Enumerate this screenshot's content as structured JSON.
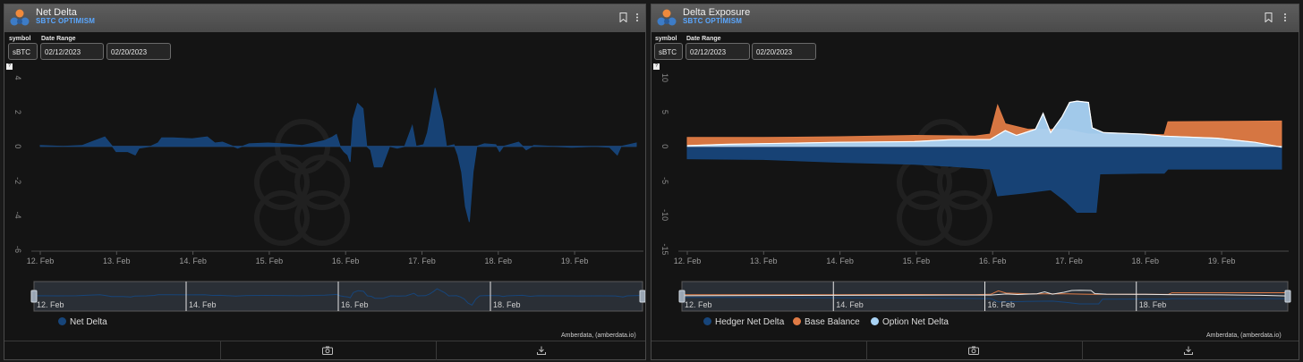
{
  "panels": [
    {
      "title": "Net Delta",
      "subtitle": "SBTC OPTIMISM",
      "symbol_label": "symbol",
      "symbol_value": "sBTC",
      "date_label": "Date Range",
      "date_from": "02/12/2023",
      "date_to": "02/20/2023",
      "help": "?",
      "credit": "Amberdata, (amberdata.io)",
      "legend": [
        {
          "label": "Net Delta",
          "color": "#17457a"
        }
      ]
    },
    {
      "title": "Delta Exposure",
      "subtitle": "SBTC OPTIMISM",
      "symbol_label": "symbol",
      "symbol_value": "sBTC",
      "date_label": "Date Range",
      "date_from": "02/12/2023",
      "date_to": "02/20/2023",
      "help": "?",
      "credit": "Amberdata, (amberdata.io)",
      "legend": [
        {
          "label": "Hedger Net Delta",
          "color": "#17457a"
        },
        {
          "label": "Base Balance",
          "color": "#e07b45"
        },
        {
          "label": "Option Net Delta",
          "color": "#a9d3f5"
        }
      ]
    }
  ],
  "icons": {
    "bookmark": "bookmark-icon",
    "more": "more-vertical-icon",
    "camera": "camera-icon",
    "download": "download-icon"
  },
  "chart_data": [
    {
      "type": "area",
      "title": "Net Delta",
      "x_ticks": [
        "12. Feb",
        "13. Feb",
        "14. Feb",
        "15. Feb",
        "16. Feb",
        "17. Feb",
        "18. Feb",
        "19. Feb"
      ],
      "navigator_labels": [
        "12. Feb",
        "14. Feb",
        "16. Feb",
        "18. Feb"
      ],
      "y_ticks": [
        "4",
        "2",
        "0",
        "-2",
        "-4",
        "-6"
      ],
      "ylim": [
        -6,
        4
      ],
      "xlim": [
        12.0,
        19.85
      ],
      "series": [
        {
          "name": "Net Delta",
          "color": "#17457a",
          "points": [
            [
              12.0,
              0.05
            ],
            [
              12.3,
              0.0
            ],
            [
              12.55,
              0.05
            ],
            [
              12.7,
              0.3
            ],
            [
              12.85,
              0.55
            ],
            [
              12.95,
              0.0
            ],
            [
              13.0,
              -0.3
            ],
            [
              13.15,
              -0.3
            ],
            [
              13.25,
              -0.5
            ],
            [
              13.3,
              -0.1
            ],
            [
              13.45,
              0.0
            ],
            [
              13.55,
              0.2
            ],
            [
              13.6,
              0.5
            ],
            [
              13.75,
              0.5
            ],
            [
              14.0,
              0.45
            ],
            [
              14.2,
              0.55
            ],
            [
              14.3,
              0.2
            ],
            [
              14.4,
              0.25
            ],
            [
              14.6,
              -0.1
            ],
            [
              14.75,
              0.15
            ],
            [
              15.0,
              0.2
            ],
            [
              15.2,
              0.15
            ],
            [
              15.45,
              0.05
            ],
            [
              15.6,
              0.2
            ],
            [
              15.75,
              0.35
            ],
            [
              15.85,
              0.55
            ],
            [
              15.9,
              0.7
            ],
            [
              15.95,
              0.0
            ],
            [
              16.0,
              -0.3
            ],
            [
              16.05,
              -0.5
            ],
            [
              16.08,
              -0.9
            ],
            [
              16.12,
              1.6
            ],
            [
              16.18,
              2.5
            ],
            [
              16.25,
              2.2
            ],
            [
              16.3,
              0.0
            ],
            [
              16.35,
              -0.2
            ],
            [
              16.4,
              -1.2
            ],
            [
              16.5,
              -1.2
            ],
            [
              16.6,
              0.0
            ],
            [
              16.7,
              -0.1
            ],
            [
              16.8,
              0.0
            ],
            [
              16.9,
              1.2
            ],
            [
              16.95,
              0.0
            ],
            [
              17.05,
              0.1
            ],
            [
              17.1,
              0.8
            ],
            [
              17.15,
              2.0
            ],
            [
              17.2,
              3.4
            ],
            [
              17.3,
              1.5
            ],
            [
              17.35,
              0.0
            ],
            [
              17.45,
              0.1
            ],
            [
              17.5,
              -0.5
            ],
            [
              17.55,
              -1.5
            ],
            [
              17.6,
              -3.5
            ],
            [
              17.65,
              -4.4
            ],
            [
              17.7,
              -1.5
            ],
            [
              17.75,
              0.0
            ],
            [
              17.85,
              0.15
            ],
            [
              18.0,
              0.1
            ],
            [
              18.05,
              -0.3
            ],
            [
              18.1,
              0.0
            ],
            [
              18.3,
              0.25
            ],
            [
              18.4,
              -0.2
            ],
            [
              18.5,
              0.05
            ],
            [
              18.75,
              0.0
            ],
            [
              19.0,
              -0.05
            ],
            [
              19.3,
              0.0
            ],
            [
              19.5,
              -0.05
            ],
            [
              19.6,
              -0.5
            ],
            [
              19.65,
              0.0
            ],
            [
              19.85,
              0.2
            ]
          ]
        }
      ]
    },
    {
      "type": "area",
      "title": "Delta Exposure",
      "x_ticks": [
        "12. Feb",
        "13. Feb",
        "14. Feb",
        "15. Feb",
        "16. Feb",
        "17. Feb",
        "18. Feb",
        "19. Feb"
      ],
      "navigator_labels": [
        "12. Feb",
        "14. Feb",
        "16. Feb",
        "18. Feb"
      ],
      "y_ticks": [
        "10",
        "5",
        "0",
        "-5",
        "-10",
        "-15"
      ],
      "ylim": [
        -15,
        10
      ],
      "xlim": [
        12.0,
        19.85
      ],
      "series": [
        {
          "name": "Hedger Net Delta",
          "color": "#17457a",
          "points": [
            [
              12.0,
              -1.8
            ],
            [
              13.0,
              -1.9
            ],
            [
              14.0,
              -2.3
            ],
            [
              15.0,
              -2.6
            ],
            [
              15.5,
              -2.9
            ],
            [
              16.0,
              -3.3
            ],
            [
              16.1,
              -7.2
            ],
            [
              16.45,
              -6.8
            ],
            [
              16.8,
              -6.3
            ],
            [
              17.0,
              -8.0
            ],
            [
              17.15,
              -9.6
            ],
            [
              17.4,
              -9.6
            ],
            [
              17.45,
              -4.0
            ],
            [
              18.0,
              -3.9
            ],
            [
              18.3,
              -3.9
            ],
            [
              18.35,
              -3.3
            ],
            [
              19.85,
              -3.3
            ]
          ]
        },
        {
          "name": "Base Balance",
          "color": "#e07b45",
          "points": [
            [
              12.0,
              1.3
            ],
            [
              13.0,
              1.3
            ],
            [
              14.0,
              1.4
            ],
            [
              15.0,
              1.6
            ],
            [
              15.8,
              1.5
            ],
            [
              16.0,
              1.8
            ],
            [
              16.1,
              6.0
            ],
            [
              16.2,
              3.3
            ],
            [
              16.5,
              2.5
            ],
            [
              17.0,
              2.5
            ],
            [
              17.2,
              2.0
            ],
            [
              17.3,
              1.8
            ],
            [
              18.0,
              1.8
            ],
            [
              18.3,
              1.7
            ],
            [
              18.35,
              3.6
            ],
            [
              19.85,
              3.7
            ]
          ]
        },
        {
          "name": "Option Net Delta",
          "color": "#a9d3f5",
          "points": [
            [
              12.0,
              0.1
            ],
            [
              12.5,
              0.3
            ],
            [
              13.0,
              0.4
            ],
            [
              13.5,
              0.5
            ],
            [
              14.0,
              0.6
            ],
            [
              15.0,
              0.7
            ],
            [
              15.5,
              1.0
            ],
            [
              16.0,
              1.0
            ],
            [
              16.2,
              2.3
            ],
            [
              16.35,
              1.6
            ],
            [
              16.6,
              2.5
            ],
            [
              16.7,
              4.8
            ],
            [
              16.8,
              2.0
            ],
            [
              16.95,
              4.3
            ],
            [
              17.05,
              6.4
            ],
            [
              17.15,
              6.6
            ],
            [
              17.3,
              6.4
            ],
            [
              17.35,
              2.7
            ],
            [
              17.5,
              2.0
            ],
            [
              18.0,
              1.8
            ],
            [
              18.3,
              1.5
            ],
            [
              19.0,
              1.2
            ],
            [
              19.5,
              0.6
            ],
            [
              19.85,
              -0.1
            ]
          ]
        }
      ]
    }
  ]
}
